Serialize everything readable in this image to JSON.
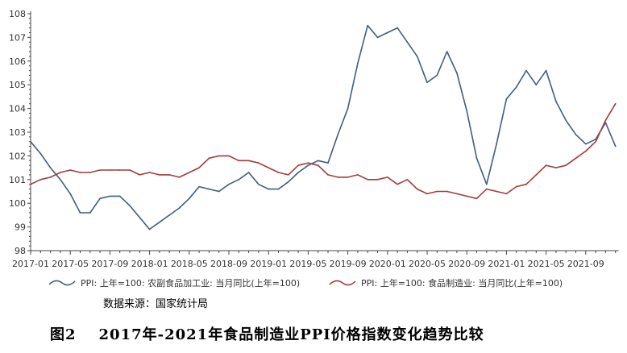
{
  "chart_data": {
    "type": "line",
    "title": "",
    "xlabel": "",
    "ylabel": "",
    "ylim": [
      98,
      108
    ],
    "yticks": [
      98,
      99,
      100,
      101,
      102,
      103,
      104,
      105,
      106,
      107,
      108
    ],
    "x_start": "2017-01",
    "xtick_labels": [
      "2017-01",
      "2017-05",
      "2017-09",
      "2018-01",
      "2018-05",
      "2018-09",
      "2019-01",
      "2019-05",
      "2019-09",
      "2020-01",
      "2020-05",
      "2020-09",
      "2021-01",
      "2021-05",
      "2021-09"
    ],
    "grid": false,
    "legend_placement": "bottom",
    "series": [
      {
        "name": "PPI: 上年=100: 农副食品加工业: 当月同比(上年=100)",
        "color": "#3f5e7e",
        "values": [
          102.6,
          102.1,
          101.5,
          101.0,
          100.4,
          99.6,
          99.6,
          100.2,
          100.3,
          100.3,
          99.9,
          99.4,
          98.9,
          99.2,
          99.5,
          99.8,
          100.2,
          100.7,
          100.6,
          100.5,
          100.8,
          101.0,
          101.3,
          100.8,
          100.6,
          100.6,
          100.9,
          101.3,
          101.6,
          101.8,
          101.7,
          102.9,
          104.0,
          105.9,
          107.5,
          107.0,
          107.2,
          107.4,
          106.8,
          106.2,
          105.1,
          105.4,
          106.4,
          105.5,
          103.9,
          101.9,
          100.8,
          102.5,
          104.4,
          104.9,
          105.6,
          105.0,
          105.6,
          104.3,
          103.5,
          102.9,
          102.5,
          102.7,
          103.4,
          102.4
        ]
      },
      {
        "name": "PPI: 上年=100: 食品制造业: 当月同比(上年=100)",
        "color": "#a23b3b",
        "values": [
          100.8,
          101.0,
          101.1,
          101.3,
          101.4,
          101.3,
          101.3,
          101.4,
          101.4,
          101.4,
          101.4,
          101.2,
          101.3,
          101.2,
          101.2,
          101.1,
          101.3,
          101.5,
          101.9,
          102.0,
          102.0,
          101.8,
          101.8,
          101.7,
          101.5,
          101.3,
          101.2,
          101.6,
          101.7,
          101.6,
          101.2,
          101.1,
          101.1,
          101.2,
          101.0,
          101.0,
          101.1,
          100.8,
          101.0,
          100.6,
          100.4,
          100.5,
          100.5,
          100.4,
          100.3,
          100.2,
          100.6,
          100.5,
          100.4,
          100.7,
          100.8,
          101.2,
          101.6,
          101.5,
          101.6,
          101.9,
          102.2,
          102.6,
          103.5,
          104.2
        ]
      }
    ]
  },
  "source": "数据来源：国家统计局",
  "caption": {
    "figure": "图2",
    "text": "2017年-2021年食品制造业PPI价格指数变化趋势比较"
  }
}
